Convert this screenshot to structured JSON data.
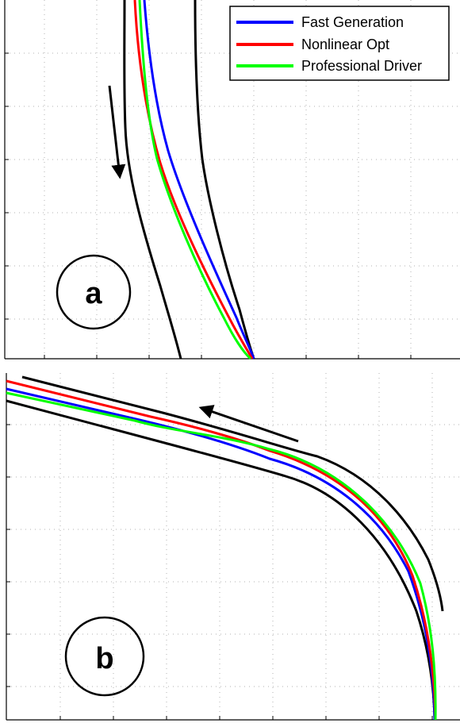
{
  "legend": {
    "entries": [
      {
        "label": "Fast Generation",
        "color": "#0000ff"
      },
      {
        "label": "Nonlinear Opt",
        "color": "#ff0000"
      },
      {
        "label": "Professional Driver",
        "color": "#00ff00"
      }
    ]
  },
  "panels": [
    {
      "letter": "a"
    },
    {
      "letter": "b"
    }
  ],
  "chart_data": [
    {
      "type": "line",
      "panel": "a",
      "grid": true,
      "legend_position": "top-right",
      "series": [
        {
          "name": "Fast Generation",
          "color": "#0000ff"
        },
        {
          "name": "Nonlinear Opt",
          "color": "#ff0000"
        },
        {
          "name": "Professional Driver",
          "color": "#00ff00"
        }
      ],
      "track_edges": "black",
      "direction_arrow": "down"
    },
    {
      "type": "line",
      "panel": "b",
      "grid": true,
      "series": [
        {
          "name": "Fast Generation",
          "color": "#0000ff"
        },
        {
          "name": "Nonlinear Opt",
          "color": "#ff0000"
        },
        {
          "name": "Professional Driver",
          "color": "#00ff00"
        }
      ],
      "track_edges": "black",
      "direction_arrow": "left"
    }
  ]
}
